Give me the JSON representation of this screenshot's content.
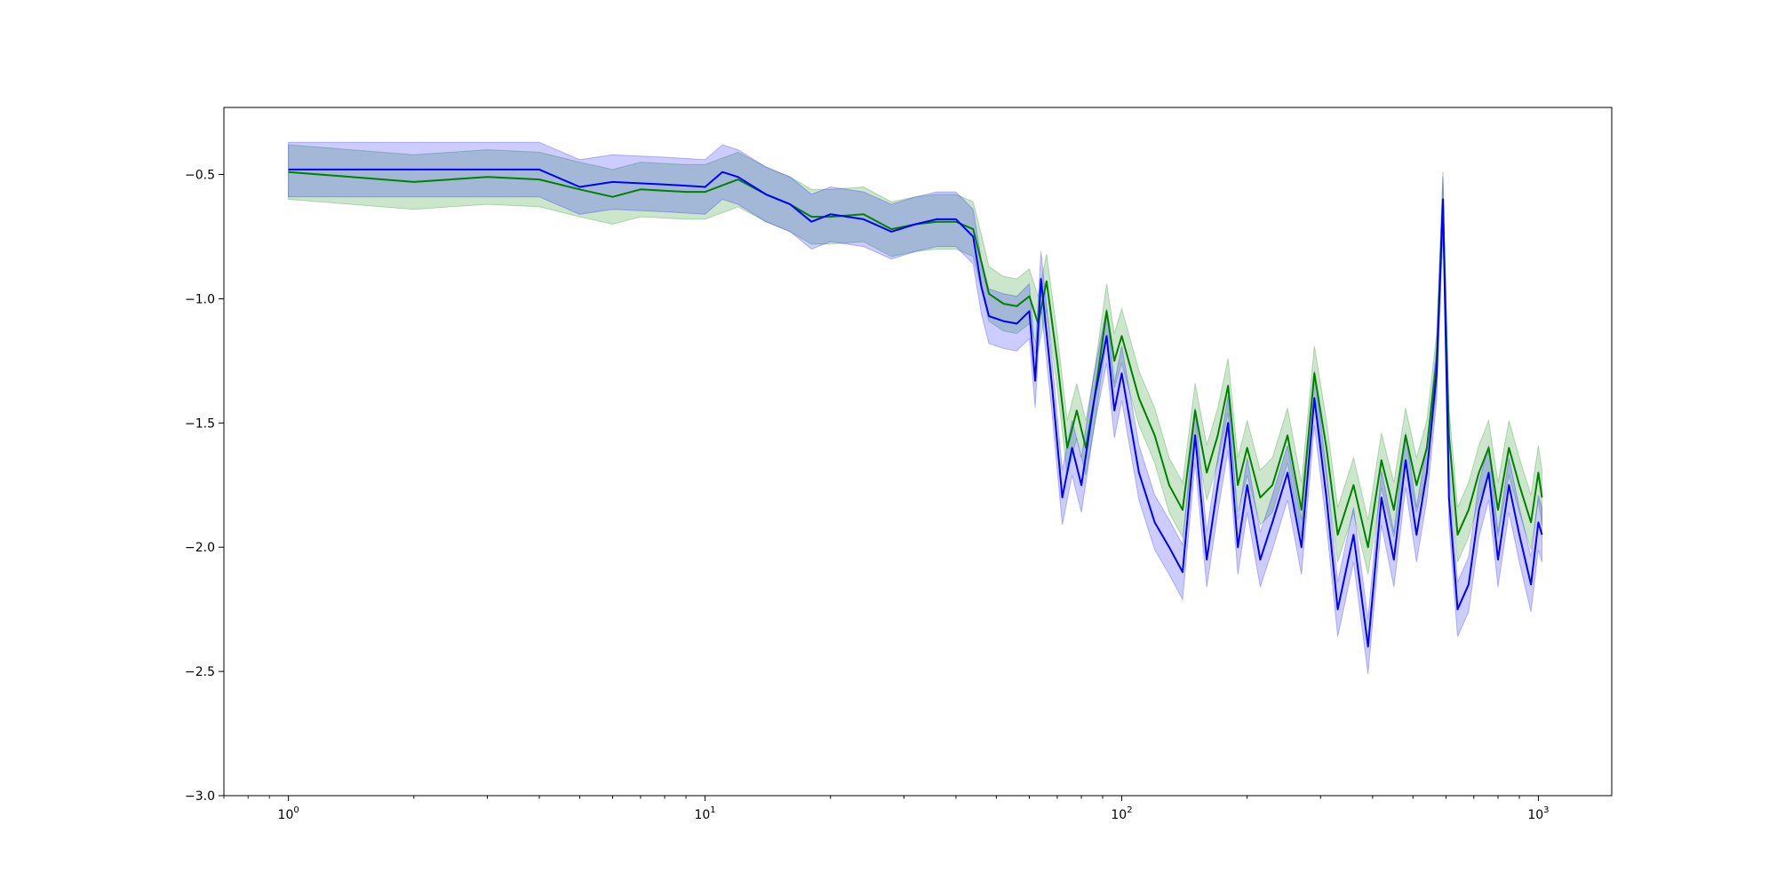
{
  "chart_data": {
    "type": "line",
    "x_scale": "log",
    "xlim": [
      0.7,
      1500
    ],
    "ylim": [
      -3.0,
      -0.23
    ],
    "grid": false,
    "legend": "none",
    "x_ticks": [
      {
        "value": 1,
        "base": "10",
        "exp": "0"
      },
      {
        "value": 10,
        "base": "10",
        "exp": "1"
      },
      {
        "value": 100,
        "base": "10",
        "exp": "2"
      },
      {
        "value": 1000,
        "base": "10",
        "exp": "3"
      }
    ],
    "y_ticks": [
      {
        "value": -0.5,
        "label": "−0.5"
      },
      {
        "value": -1.0,
        "label": "−1.0"
      },
      {
        "value": -1.5,
        "label": "−1.5"
      },
      {
        "value": -2.0,
        "label": "−2.0"
      },
      {
        "value": -2.5,
        "label": "−2.5"
      },
      {
        "value": -3.0,
        "label": "−3.0"
      }
    ],
    "series": [
      {
        "color": "#008000",
        "band_color": "#008000",
        "band_opacity": 0.2,
        "band_halfwidth": 0.11,
        "points": [
          [
            1,
            -0.49
          ],
          [
            2,
            -0.53
          ],
          [
            3,
            -0.51
          ],
          [
            4,
            -0.52
          ],
          [
            5,
            -0.56
          ],
          [
            6,
            -0.59
          ],
          [
            7,
            -0.56
          ],
          [
            9,
            -0.57
          ],
          [
            10,
            -0.57
          ],
          [
            12,
            -0.52
          ],
          [
            14,
            -0.58
          ],
          [
            16,
            -0.62
          ],
          [
            18,
            -0.67
          ],
          [
            20,
            -0.67
          ],
          [
            24,
            -0.66
          ],
          [
            28,
            -0.72
          ],
          [
            32,
            -0.7
          ],
          [
            36,
            -0.69
          ],
          [
            40,
            -0.69
          ],
          [
            44,
            -0.72
          ],
          [
            46,
            -0.85
          ],
          [
            48,
            -0.98
          ],
          [
            52,
            -1.02
          ],
          [
            56,
            -1.03
          ],
          [
            60,
            -0.99
          ],
          [
            63,
            -1.1
          ],
          [
            66,
            -0.93
          ],
          [
            70,
            -1.25
          ],
          [
            74,
            -1.6
          ],
          [
            78,
            -1.45
          ],
          [
            82,
            -1.6
          ],
          [
            86,
            -1.4
          ],
          [
            92,
            -1.05
          ],
          [
            96,
            -1.25
          ],
          [
            100,
            -1.15
          ],
          [
            110,
            -1.4
          ],
          [
            120,
            -1.55
          ],
          [
            130,
            -1.75
          ],
          [
            140,
            -1.85
          ],
          [
            150,
            -1.45
          ],
          [
            160,
            -1.7
          ],
          [
            170,
            -1.55
          ],
          [
            180,
            -1.35
          ],
          [
            190,
            -1.75
          ],
          [
            200,
            -1.6
          ],
          [
            215,
            -1.8
          ],
          [
            230,
            -1.75
          ],
          [
            250,
            -1.55
          ],
          [
            270,
            -1.85
          ],
          [
            290,
            -1.3
          ],
          [
            310,
            -1.6
          ],
          [
            330,
            -1.95
          ],
          [
            360,
            -1.75
          ],
          [
            390,
            -2.0
          ],
          [
            420,
            -1.65
          ],
          [
            450,
            -1.85
          ],
          [
            480,
            -1.55
          ],
          [
            510,
            -1.75
          ],
          [
            540,
            -1.6
          ],
          [
            570,
            -1.25
          ],
          [
            590,
            -0.62
          ],
          [
            610,
            -1.55
          ],
          [
            640,
            -1.95
          ],
          [
            680,
            -1.85
          ],
          [
            720,
            -1.7
          ],
          [
            760,
            -1.6
          ],
          [
            800,
            -1.85
          ],
          [
            850,
            -1.6
          ],
          [
            900,
            -1.75
          ],
          [
            960,
            -1.9
          ],
          [
            1000,
            -1.7
          ],
          [
            1020,
            -1.8
          ]
        ]
      },
      {
        "color": "#0000ff",
        "band_color": "#0000ff",
        "band_opacity": 0.2,
        "band_halfwidth": 0.11,
        "points": [
          [
            1,
            -0.48
          ],
          [
            2,
            -0.48
          ],
          [
            3,
            -0.48
          ],
          [
            4,
            -0.48
          ],
          [
            5,
            -0.55
          ],
          [
            6,
            -0.53
          ],
          [
            8,
            -0.54
          ],
          [
            10,
            -0.55
          ],
          [
            11,
            -0.49
          ],
          [
            12,
            -0.51
          ],
          [
            14,
            -0.58
          ],
          [
            16,
            -0.62
          ],
          [
            18,
            -0.69
          ],
          [
            20,
            -0.66
          ],
          [
            24,
            -0.68
          ],
          [
            28,
            -0.73
          ],
          [
            32,
            -0.7
          ],
          [
            36,
            -0.68
          ],
          [
            40,
            -0.68
          ],
          [
            44,
            -0.75
          ],
          [
            46,
            -0.95
          ],
          [
            48,
            -1.07
          ],
          [
            52,
            -1.09
          ],
          [
            56,
            -1.1
          ],
          [
            60,
            -1.05
          ],
          [
            62,
            -1.33
          ],
          [
            64,
            -0.92
          ],
          [
            68,
            -1.35
          ],
          [
            72,
            -1.8
          ],
          [
            76,
            -1.6
          ],
          [
            80,
            -1.75
          ],
          [
            86,
            -1.4
          ],
          [
            92,
            -1.15
          ],
          [
            96,
            -1.45
          ],
          [
            100,
            -1.3
          ],
          [
            110,
            -1.7
          ],
          [
            120,
            -1.9
          ],
          [
            130,
            -2.0
          ],
          [
            140,
            -2.1
          ],
          [
            150,
            -1.55
          ],
          [
            160,
            -2.05
          ],
          [
            170,
            -1.75
          ],
          [
            180,
            -1.5
          ],
          [
            190,
            -2.0
          ],
          [
            200,
            -1.75
          ],
          [
            215,
            -2.05
          ],
          [
            230,
            -1.9
          ],
          [
            250,
            -1.7
          ],
          [
            270,
            -2.0
          ],
          [
            290,
            -1.4
          ],
          [
            310,
            -1.8
          ],
          [
            330,
            -2.25
          ],
          [
            360,
            -1.95
          ],
          [
            390,
            -2.4
          ],
          [
            420,
            -1.8
          ],
          [
            450,
            -2.05
          ],
          [
            480,
            -1.65
          ],
          [
            510,
            -1.95
          ],
          [
            540,
            -1.7
          ],
          [
            570,
            -1.3
          ],
          [
            590,
            -0.6
          ],
          [
            610,
            -1.8
          ],
          [
            640,
            -2.25
          ],
          [
            680,
            -2.15
          ],
          [
            720,
            -1.85
          ],
          [
            760,
            -1.7
          ],
          [
            800,
            -2.05
          ],
          [
            850,
            -1.75
          ],
          [
            900,
            -1.95
          ],
          [
            960,
            -2.15
          ],
          [
            1000,
            -1.9
          ],
          [
            1020,
            -1.95
          ]
        ]
      }
    ]
  }
}
